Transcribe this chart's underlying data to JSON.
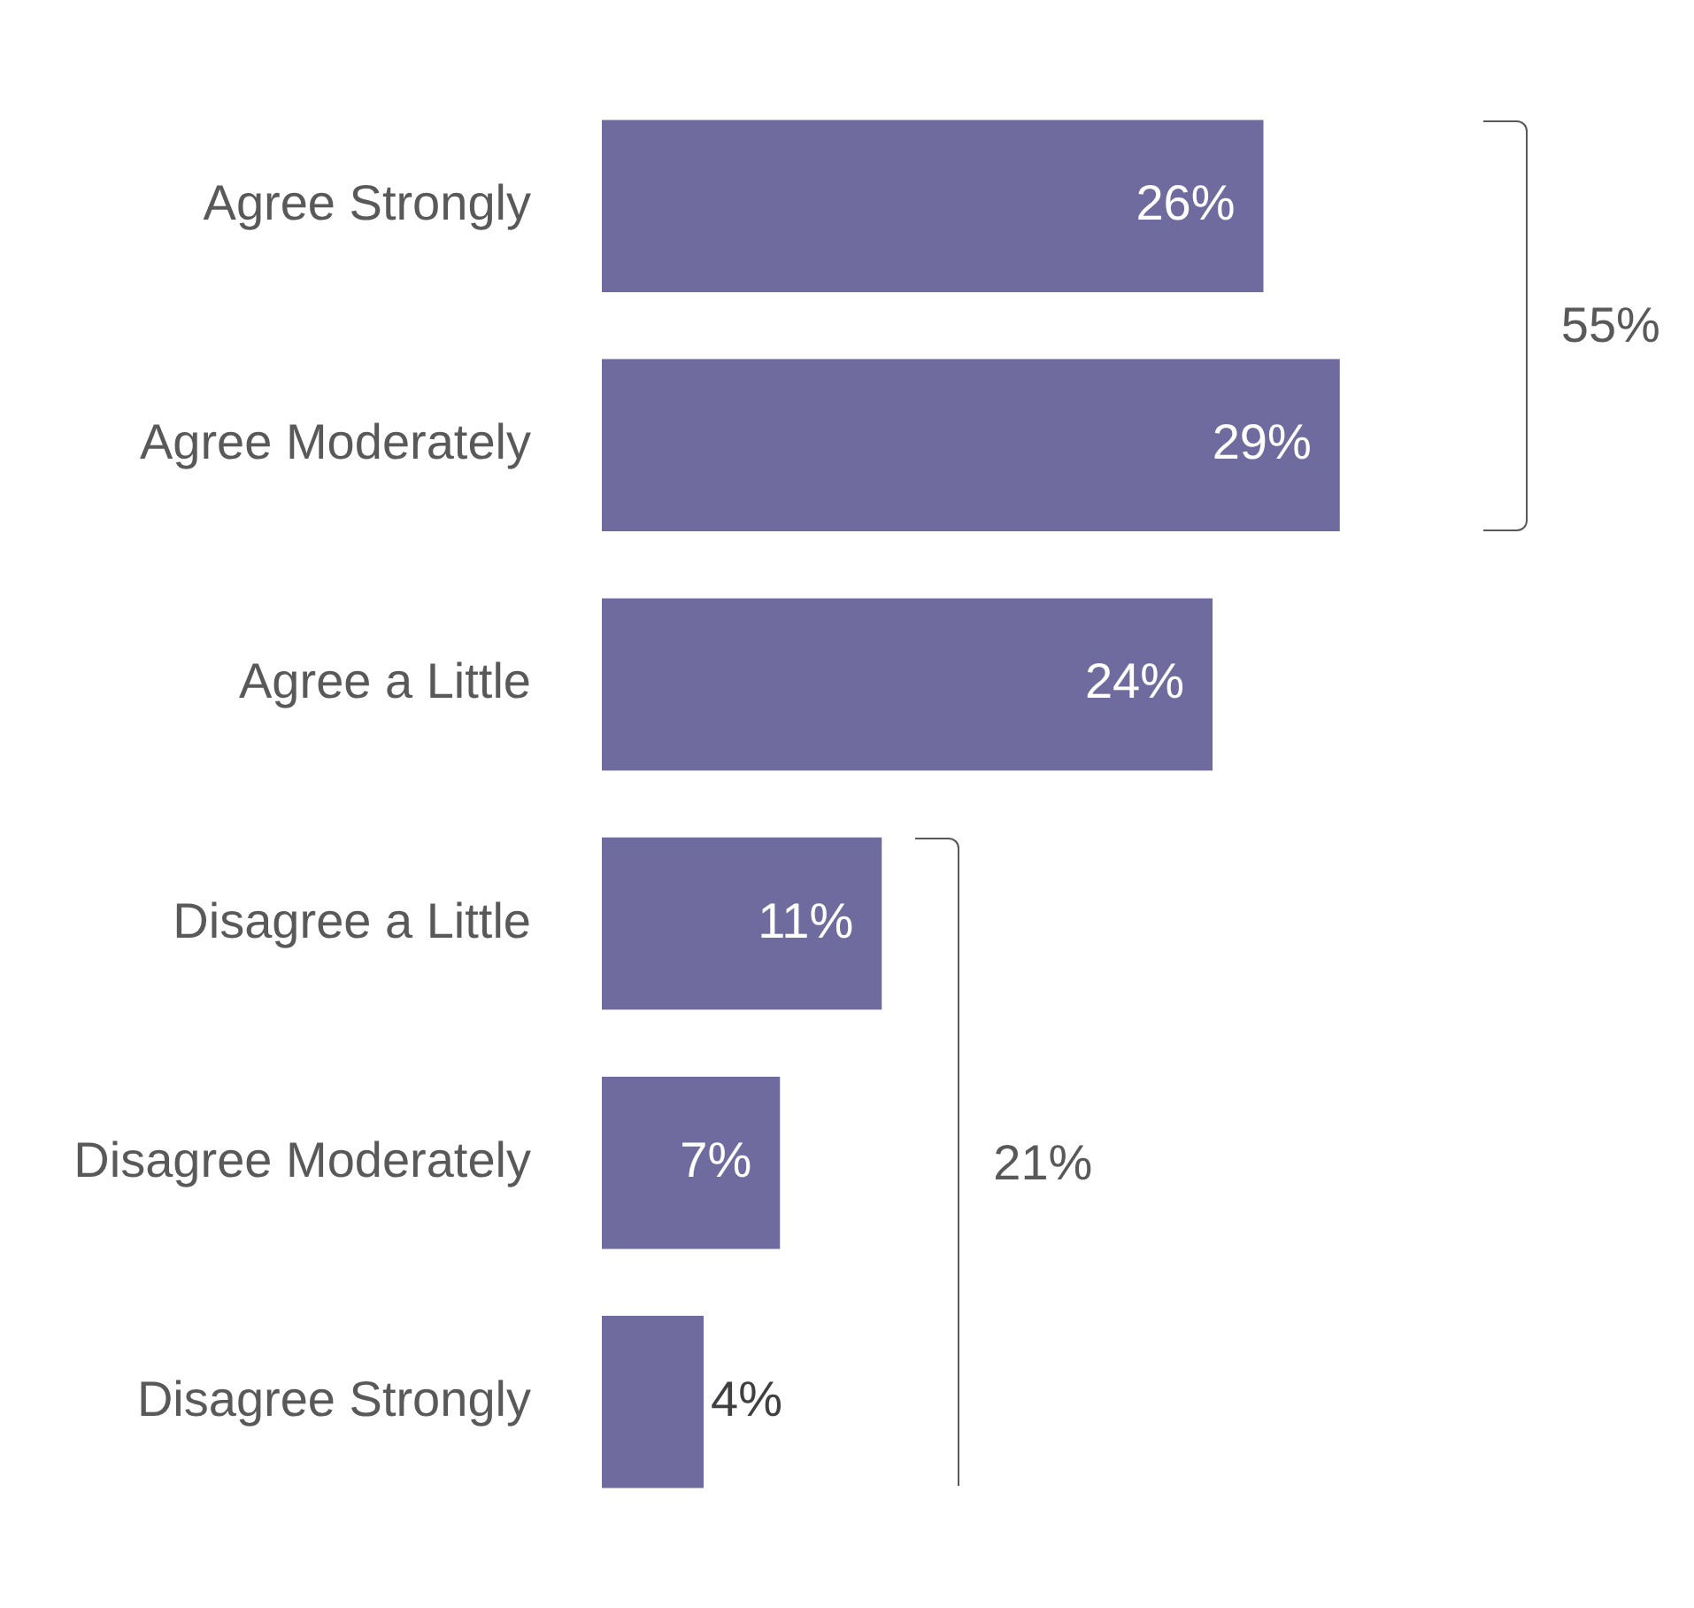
{
  "chart_data": {
    "type": "bar",
    "orientation": "horizontal",
    "categories": [
      "Agree Strongly",
      "Agree Moderately",
      "Agree a Little",
      "Disagree a Little",
      "Disagree Moderately",
      "Disagree Strongly"
    ],
    "values": [
      26,
      29,
      24,
      11,
      7,
      4
    ],
    "value_labels": [
      "26%",
      "29%",
      "24%",
      "11%",
      "7%",
      "4%"
    ],
    "color": "#6f6b9e",
    "grid": false,
    "legend": false,
    "annotations": [
      "55%",
      "21%"
    ]
  }
}
